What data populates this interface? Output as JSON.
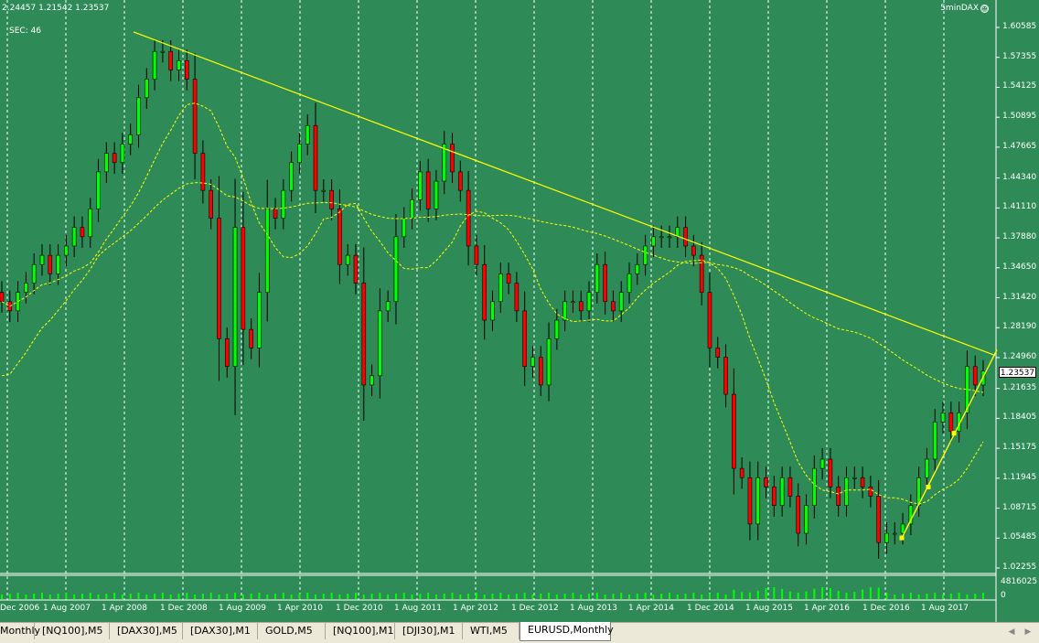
{
  "chart": {
    "ohlc_text": "2.24457 1.21542 1.23537",
    "sec_text": "SEC: 46",
    "ea_name": "5minDAX",
    "ea_icon": "smiley-icon",
    "current_price": "1.23537",
    "price_labels": [
      "1.60585",
      "1.57355",
      "1.54125",
      "1.50895",
      "1.47665",
      "1.44340",
      "1.41110",
      "1.37880",
      "1.34650",
      "1.31420",
      "1.28190",
      "1.24960",
      "1.21635",
      "1.18405",
      "1.15175",
      "1.11945",
      "1.08715",
      "1.05485",
      "1.02255"
    ],
    "volume_labels": [
      "4816025",
      "0"
    ],
    "date_labels": [
      "Dec 2006",
      "1 Aug 2007",
      "1 Apr 2008",
      "1 Dec 2008",
      "1 Aug 2009",
      "1 Apr 2010",
      "1 Dec 2010",
      "1 Aug 2011",
      "1 Apr 2012",
      "1 Dec 2012",
      "1 Aug 2013",
      "1 Apr 2014",
      "1 Dec 2014",
      "1 Aug 2015",
      "1 Apr 2016",
      "1 Dec 2016",
      "1 Aug 2017"
    ],
    "colors": {
      "background": "#2e8b57",
      "bull": "#00ff00",
      "bear": "#ff0000",
      "grid": "#ffffff",
      "trendline": "#ffff00",
      "ma": "#ffff00",
      "volume": "#00ff00"
    },
    "price_range": [
      1.02255,
      1.60585
    ]
  },
  "tabs": [
    {
      "label": "Monthly",
      "active": false
    },
    {
      "label": "[NQ100],M5",
      "active": false
    },
    {
      "label": "[DAX30],M5",
      "active": false
    },
    {
      "label": "[DAX30],M1",
      "active": false
    },
    {
      "label": "GOLD,M5",
      "active": false
    },
    {
      "label": "[NQ100],M1",
      "active": false
    },
    {
      "label": "[DJI30],M1",
      "active": false
    },
    {
      "label": "WTI,M5",
      "active": false
    },
    {
      "label": "EURUSD,Monthly",
      "active": true
    }
  ],
  "chart_data": {
    "type": "candlestick",
    "symbol": "EURUSD",
    "timeframe": "Monthly",
    "ylim": [
      1.02255,
      1.60585
    ],
    "candles_approx_close": [
      1.31,
      1.3,
      1.32,
      1.33,
      1.35,
      1.36,
      1.34,
      1.36,
      1.37,
      1.39,
      1.38,
      1.41,
      1.45,
      1.47,
      1.46,
      1.48,
      1.49,
      1.53,
      1.55,
      1.58,
      1.58,
      1.56,
      1.57,
      1.55,
      1.47,
      1.43,
      1.4,
      1.27,
      1.24,
      1.39,
      1.28,
      1.26,
      1.32,
      1.41,
      1.4,
      1.43,
      1.46,
      1.48,
      1.5,
      1.43,
      1.43,
      1.41,
      1.35,
      1.36,
      1.33,
      1.22,
      1.23,
      1.3,
      1.31,
      1.38,
      1.4,
      1.42,
      1.45,
      1.41,
      1.44,
      1.48,
      1.45,
      1.43,
      1.37,
      1.35,
      1.29,
      1.31,
      1.34,
      1.33,
      1.3,
      1.24,
      1.25,
      1.22,
      1.27,
      1.29,
      1.31,
      1.31,
      1.3,
      1.32,
      1.35,
      1.31,
      1.3,
      1.32,
      1.34,
      1.35,
      1.37,
      1.38,
      1.38,
      1.38,
      1.39,
      1.37,
      1.36,
      1.32,
      1.26,
      1.25,
      1.21,
      1.13,
      1.12,
      1.07,
      1.12,
      1.11,
      1.09,
      1.12,
      1.1,
      1.06,
      1.09,
      1.13,
      1.14,
      1.11,
      1.09,
      1.12,
      1.12,
      1.11,
      1.1,
      1.05,
      1.06,
      1.06,
      1.07,
      1.09,
      1.12,
      1.14,
      1.18,
      1.19,
      1.17,
      1.19,
      1.24,
      1.22,
      1.235
    ],
    "trendlines": [
      {
        "from_date": "1 Apr 2008",
        "from_price": 1.601,
        "to_date": "Dec 2017",
        "to_price": 1.255
      },
      {
        "from_date": "1 Dec 2016",
        "from_price": 1.055,
        "to_date": "Dec 2017",
        "to_price": 1.255
      }
    ],
    "indicators": [
      "moving average (short)",
      "moving average (long)",
      "volume"
    ]
  }
}
